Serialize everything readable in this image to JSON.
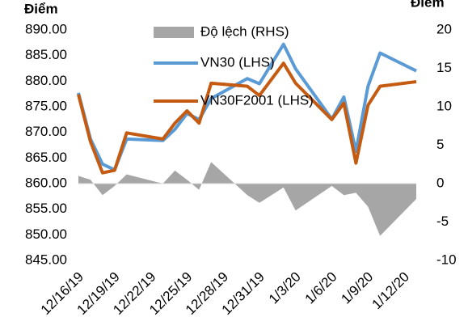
{
  "chart_data": {
    "type": "line",
    "y_label": "Điểm",
    "y2_label": "Điểm",
    "x": [
      "12/16/19",
      "12/17/19",
      "12/18/19",
      "12/19/19",
      "12/20/19",
      "12/23/19",
      "12/24/19",
      "12/25/19",
      "12/26/19",
      "12/27/19",
      "12/30/19",
      "12/31/19",
      "1/2/20",
      "1/3/20",
      "1/6/20",
      "1/7/20",
      "1/8/20",
      "1/9/20",
      "1/10/20",
      "1/13/20"
    ],
    "xlim": [
      "12/16/19",
      "1/13/20"
    ],
    "xticks": [
      "12/16/19",
      "12/19/19",
      "12/22/19",
      "12/25/19",
      "12/28/19",
      "12/31/19",
      "1/3/20",
      "1/6/20",
      "1/9/20",
      "1/12/20"
    ],
    "ylim": [
      845,
      890
    ],
    "yticks": [
      {
        "value": 845,
        "label": "845.00"
      },
      {
        "value": 850,
        "label": "850.00"
      },
      {
        "value": 855,
        "label": "855.00"
      },
      {
        "value": 860,
        "label": "860.00"
      },
      {
        "value": 865,
        "label": "865.00"
      },
      {
        "value": 870,
        "label": "870.00"
      },
      {
        "value": 875,
        "label": "875.00"
      },
      {
        "value": 880,
        "label": "880.00"
      },
      {
        "value": 885,
        "label": "885.00"
      },
      {
        "value": 890,
        "label": "890.00"
      }
    ],
    "y2lim": [
      -10,
      20
    ],
    "y2ticks": [
      -10,
      -5,
      0,
      5,
      10,
      15,
      20
    ],
    "series": [
      {
        "name": "Độ lệch (RHS)",
        "type": "area",
        "axis": "y2",
        "color": "#a6a6a6",
        "values": [
          1,
          0.5,
          -1.5,
          -0.3,
          1.2,
          0,
          1.7,
          0.5,
          -0.8,
          2.8,
          -1.5,
          -2.5,
          -0.5,
          -3.5,
          -0.3,
          -1.5,
          -1.2,
          -3,
          -6.8,
          -2
        ]
      },
      {
        "name": "VN30 (LHS)",
        "type": "line",
        "color": "#5b9bd5",
        "values": [
          877.7,
          868.7,
          863.8,
          862.7,
          868.7,
          868.4,
          870.6,
          873.7,
          872.5,
          876.6,
          880.5,
          879.5,
          887.2,
          882.4,
          872.6,
          876.9,
          866.3,
          879,
          885.5,
          882
        ]
      },
      {
        "name": "VN30F2001 (LHS)",
        "type": "line",
        "color": "#c55a11",
        "values": [
          877.4,
          868.2,
          862.1,
          862.6,
          869.9,
          868.7,
          871.8,
          874.2,
          871.8,
          879.6,
          879,
          877.2,
          883.5,
          879.6,
          872.5,
          875.7,
          864,
          875.3,
          879,
          879.9
        ]
      }
    ]
  }
}
